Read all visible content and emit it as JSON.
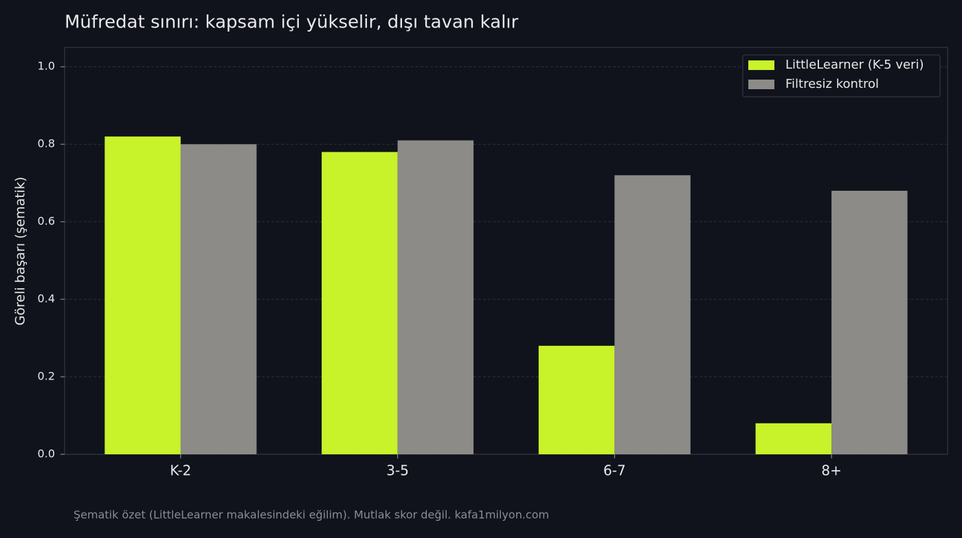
{
  "chart_data": {
    "type": "bar",
    "title": "Müfredat sınırı: kapsam içi yükselir, dışı tavan kalır",
    "y_label": "Göreli başarı (şematik)",
    "footer": "Şematik özet (LittleLearner makalesindeki eğilim). Mutlak skor değil.  kafa1milyon.com",
    "categories": [
      "K-2",
      "3-5",
      "6-7",
      "8+"
    ],
    "series": [
      {
        "name": "LittleLearner (K-5 veri)",
        "color": "#c8f22a",
        "values": [
          0.82,
          0.78,
          0.28,
          0.08
        ]
      },
      {
        "name": "Filtresiz kontrol",
        "color": "#8c8b88",
        "values": [
          0.8,
          0.81,
          0.72,
          0.68
        ]
      }
    ],
    "ylim": [
      0,
      1.05
    ],
    "yticks": [
      {
        "value": 0,
        "label": "0.0"
      },
      0.2,
      0.4,
      0.6,
      0.8,
      {
        "value": 1,
        "label": "1.0"
      }
    ],
    "grid": true,
    "legend": "upper right"
  }
}
